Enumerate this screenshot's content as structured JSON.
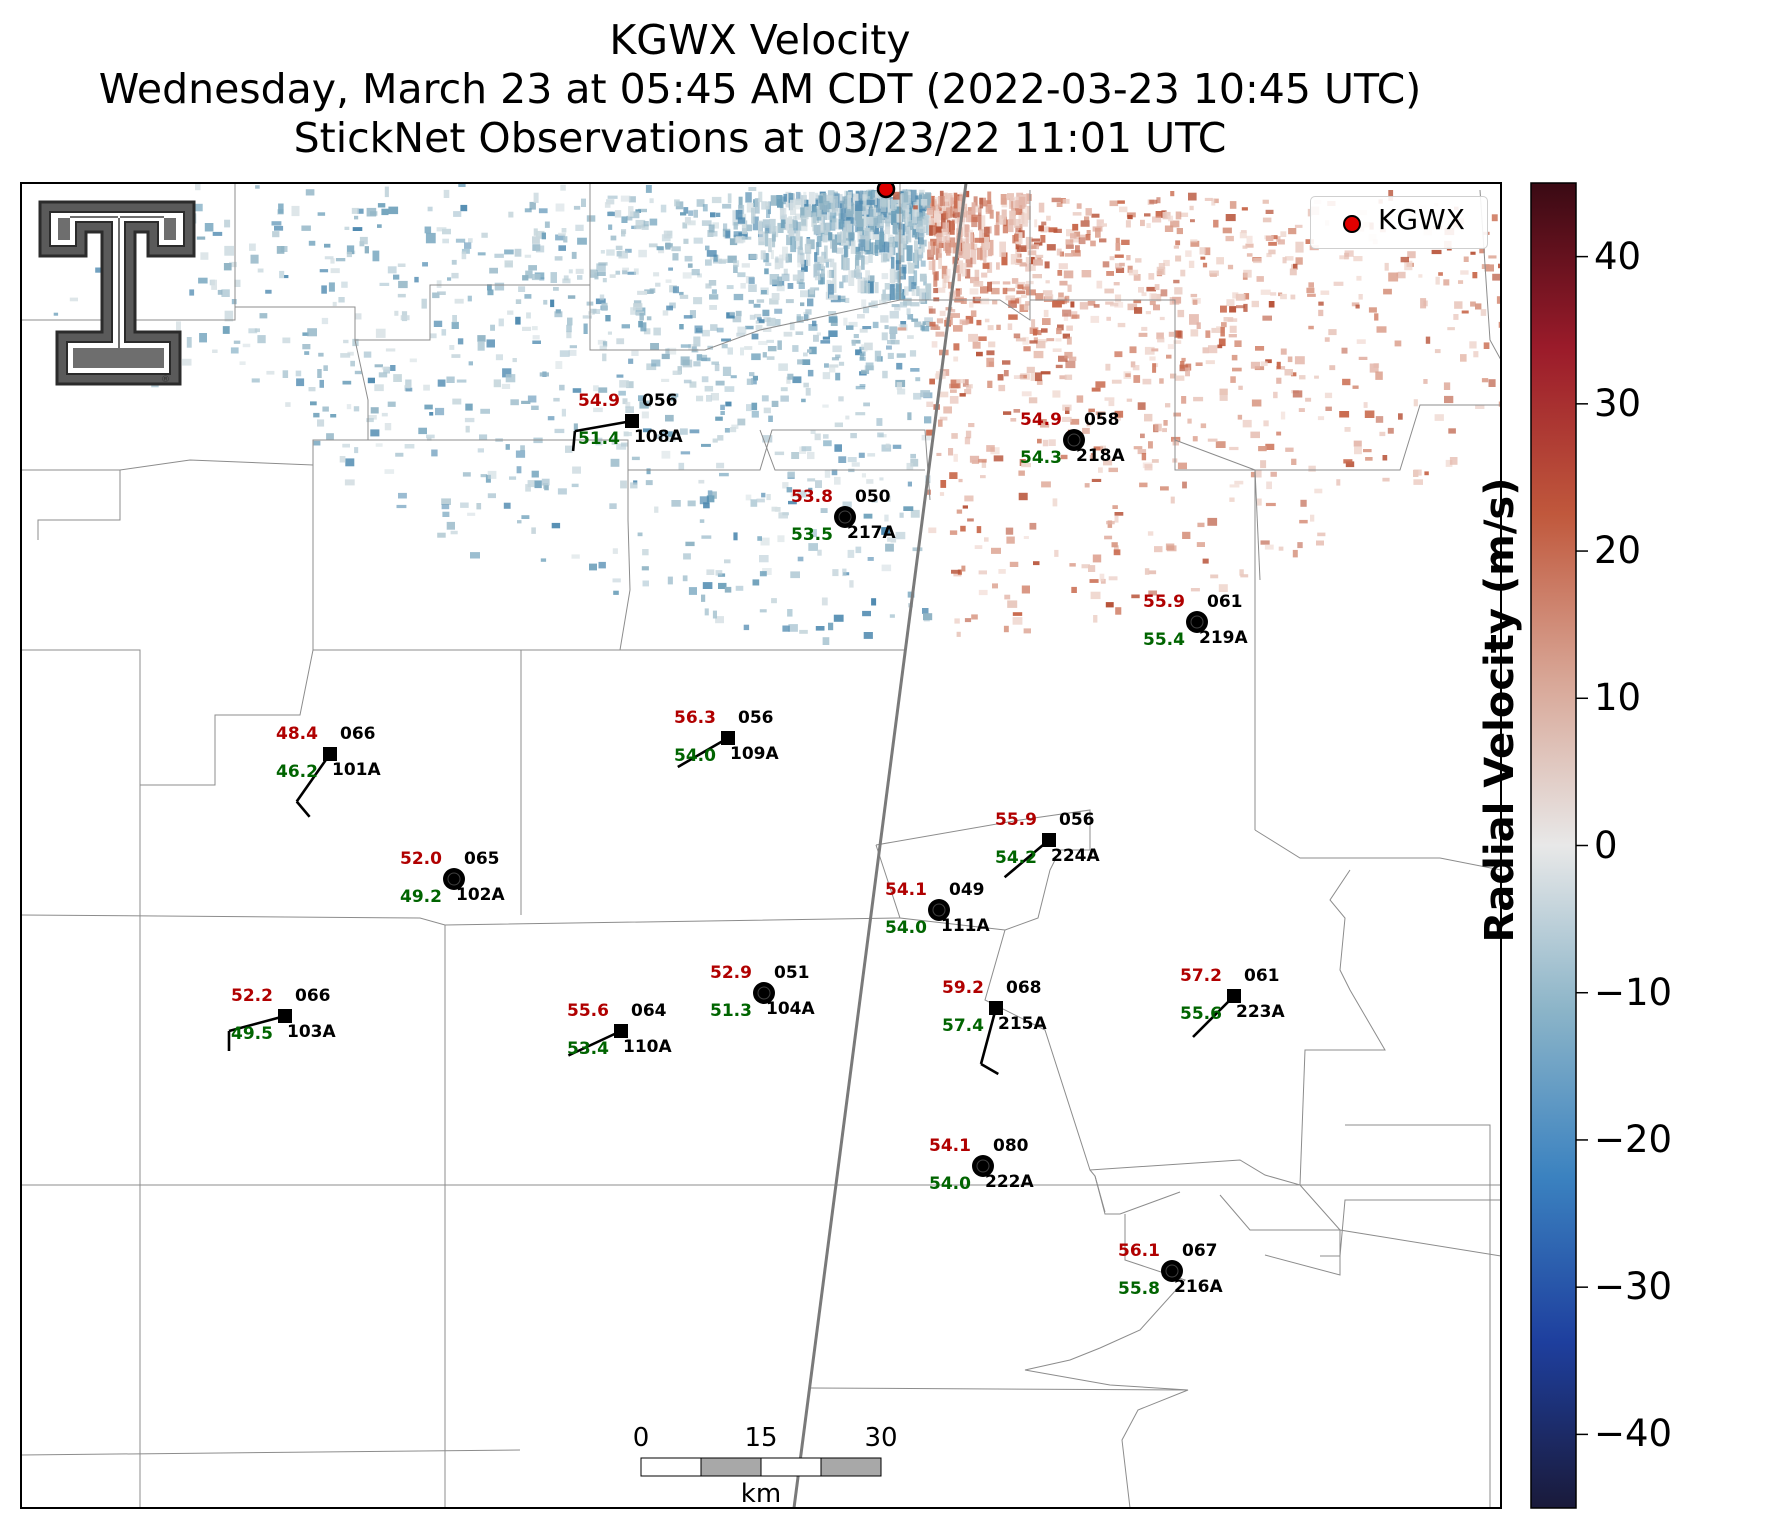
{
  "title": {
    "line1": "KGWX Velocity",
    "line2": "Wednesday, March 23 at 05:45 AM CDT (2022-03-23 10:45 UTC)",
    "line3": "StickNet Observations at 03/23/22 11:01 UTC"
  },
  "legend": {
    "label": "KGWX",
    "marker_color": "#e00000"
  },
  "colorbar": {
    "label": "Radial Velocity (m/s)",
    "range": [
      -45,
      45
    ],
    "ticks": [
      "40",
      "30",
      "20",
      "10",
      "0",
      "−10",
      "−20",
      "−30",
      "−40"
    ],
    "tick_values": [
      40,
      30,
      20,
      10,
      0,
      -10,
      -20,
      -30,
      -40
    ],
    "colors": [
      "#1a1a3a",
      "#1e3f9e",
      "#3b82c0",
      "#8bb4c8",
      "#e8e8e8",
      "#d8a696",
      "#c0583c",
      "#9b1b2a",
      "#3a0a14"
    ]
  },
  "scale_bar": {
    "labels": [
      "0",
      "15",
      "30"
    ],
    "unit": "km"
  },
  "logo": {
    "name": "Texas Tech double-T logo"
  },
  "stations": [
    {
      "id": "108A",
      "temp": "54.9",
      "dew": "51.4",
      "dir": "056",
      "marker": "square",
      "wind_dir": 260,
      "barbs": 1
    },
    {
      "id": "218A",
      "temp": "54.9",
      "dew": "54.3",
      "dir": "058",
      "marker": "circle",
      "wind_dir": 0,
      "barbs": 0
    },
    {
      "id": "217A",
      "temp": "53.8",
      "dew": "53.5",
      "dir": "050",
      "marker": "circle",
      "wind_dir": 0,
      "barbs": 0
    },
    {
      "id": "219A",
      "temp": "55.9",
      "dew": "55.4",
      "dir": "061",
      "marker": "circle",
      "wind_dir": 0,
      "barbs": 0
    },
    {
      "id": "101A",
      "temp": "48.4",
      "dew": "46.2",
      "dir": "066",
      "marker": "square",
      "wind_dir": 215,
      "barbs": 1
    },
    {
      "id": "109A",
      "temp": "56.3",
      "dew": "54.0",
      "dir": "056",
      "marker": "square",
      "wind_dir": 240,
      "barbs": 0
    },
    {
      "id": "102A",
      "temp": "52.0",
      "dew": "49.2",
      "dir": "065",
      "marker": "circle",
      "wind_dir": 0,
      "barbs": 0
    },
    {
      "id": "224A",
      "temp": "55.9",
      "dew": "54.2",
      "dir": "056",
      "marker": "square",
      "wind_dir": 230,
      "barbs": 0
    },
    {
      "id": "111A",
      "temp": "54.1",
      "dew": "54.0",
      "dir": "049",
      "marker": "circle",
      "wind_dir": 0,
      "barbs": 0
    },
    {
      "id": "103A",
      "temp": "52.2",
      "dew": "49.5",
      "dir": "066",
      "marker": "square",
      "wind_dir": 255,
      "barbs": 1
    },
    {
      "id": "110A",
      "temp": "55.6",
      "dew": "53.4",
      "dir": "064",
      "marker": "square",
      "wind_dir": 245,
      "barbs": 0
    },
    {
      "id": "104A",
      "temp": "52.9",
      "dew": "51.3",
      "dir": "051",
      "marker": "circle",
      "wind_dir": 0,
      "barbs": 0
    },
    {
      "id": "215A",
      "temp": "59.2",
      "dew": "57.4",
      "dir": "068",
      "marker": "square",
      "wind_dir": 195,
      "barbs": 1
    },
    {
      "id": "223A",
      "temp": "57.2",
      "dew": "55.6",
      "dir": "061",
      "marker": "square",
      "wind_dir": 225,
      "barbs": 0
    },
    {
      "id": "222A",
      "temp": "54.1",
      "dew": "54.0",
      "dir": "080",
      "marker": "circle",
      "wind_dir": 0,
      "barbs": 0
    },
    {
      "id": "216A",
      "temp": "56.1",
      "dew": "55.8",
      "dir": "067",
      "marker": "circle",
      "wind_dir": 0,
      "barbs": 0
    }
  ]
}
